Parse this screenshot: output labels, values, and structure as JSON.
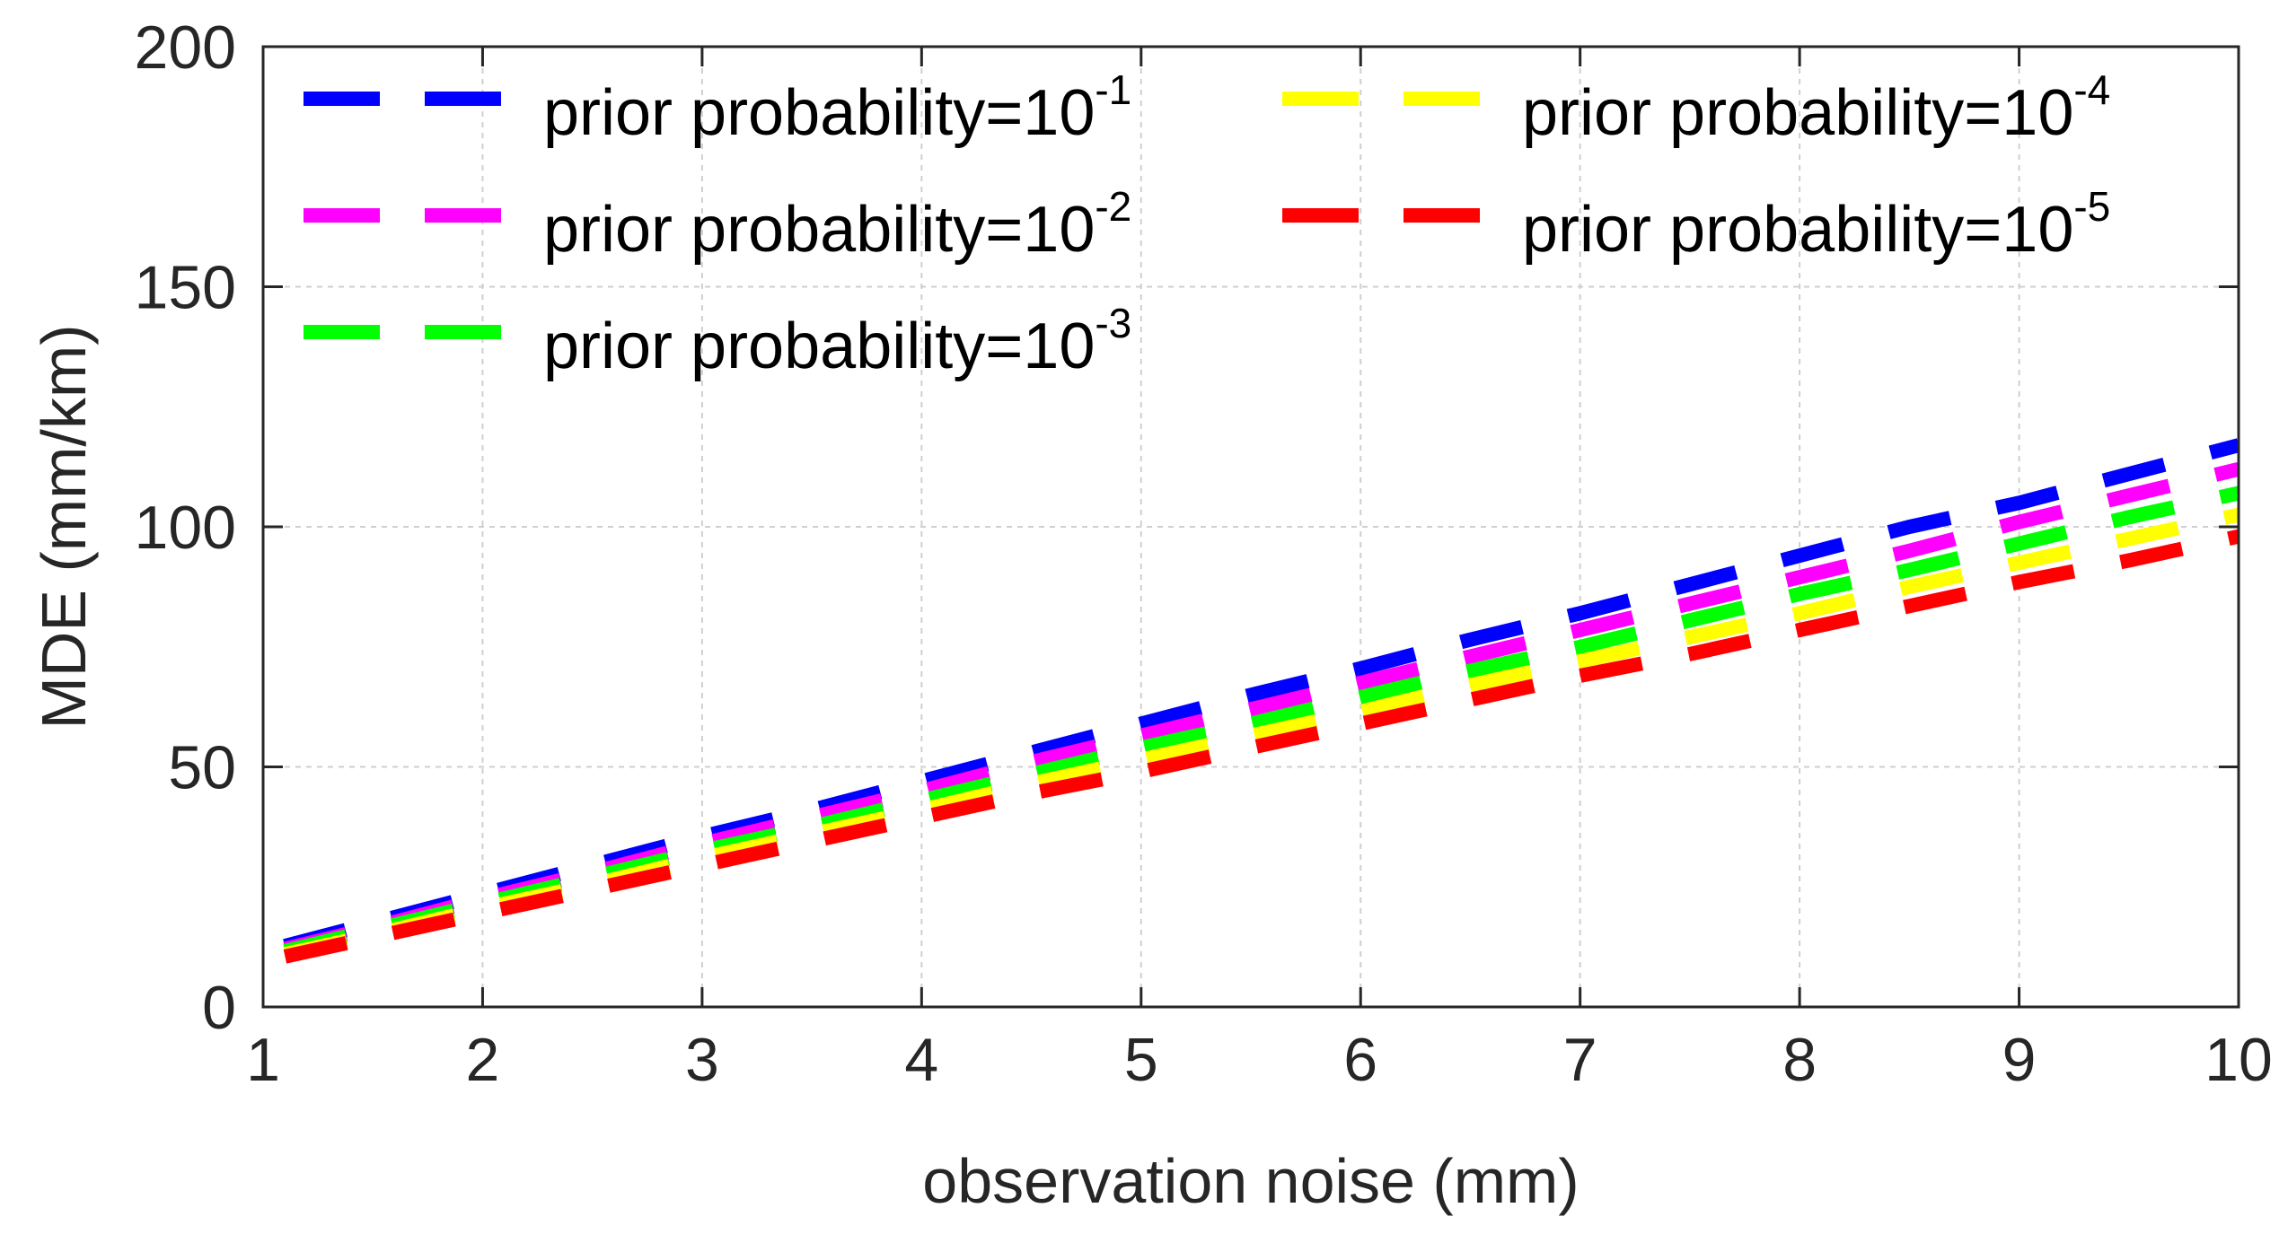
{
  "chart_data": {
    "type": "line",
    "title": "",
    "xlabel": "observation noise (mm)",
    "ylabel": "MDE (mm/km)",
    "xlim": [
      1,
      10
    ],
    "ylim": [
      0,
      200
    ],
    "xticks": [
      1,
      2,
      3,
      4,
      5,
      6,
      7,
      8,
      9,
      10
    ],
    "yticks": [
      0,
      50,
      100,
      150,
      200
    ],
    "grid": true,
    "legend_position": "top-left",
    "x": [
      1,
      1.5,
      2,
      2.5,
      3,
      3.5,
      4,
      4.5,
      5,
      5.5,
      6,
      6.5,
      7,
      7.5,
      8,
      8.5,
      9,
      9.5,
      10
    ],
    "series": [
      {
        "name": "prior probability=10",
        "exponent": "-1",
        "color": "#0000ff",
        "values": [
          11.5,
          17.5,
          23.5,
          29.5,
          35.5,
          41,
          47,
          53,
          59,
          65,
          70.5,
          76.5,
          82,
          88,
          94,
          100,
          105,
          111,
          117
        ]
      },
      {
        "name": "prior probability=10",
        "exponent": "-2",
        "color": "#ff00ff",
        "values": [
          11,
          16.5,
          22.5,
          28,
          34,
          39.5,
          45,
          51,
          56.5,
          62,
          67.5,
          73,
          78.5,
          84,
          89.5,
          95,
          101,
          106.5,
          112
        ]
      },
      {
        "name": "prior probability=10",
        "exponent": "-3",
        "color": "#00ff00",
        "values": [
          10.5,
          16,
          21.5,
          27,
          32.5,
          37.5,
          43,
          48.5,
          54,
          59,
          64.5,
          70,
          75,
          80.5,
          86,
          91,
          96.5,
          102,
          107
        ]
      },
      {
        "name": "prior probability=10",
        "exponent": "-4",
        "color": "#ffff00",
        "values": [
          10,
          15,
          20.5,
          25.5,
          31,
          36,
          41,
          46.5,
          51.5,
          56.5,
          61.5,
          67,
          72,
          77,
          82,
          87.5,
          92.5,
          97.5,
          102.5
        ]
      },
      {
        "name": "prior probability=10",
        "exponent": "-5",
        "color": "#ff0000",
        "values": [
          9.5,
          14.5,
          19.5,
          24.5,
          29.5,
          34.5,
          39.5,
          44.5,
          49,
          54,
          59,
          64,
          69,
          73.5,
          78.5,
          83.5,
          88.5,
          93,
          98
        ]
      }
    ]
  }
}
